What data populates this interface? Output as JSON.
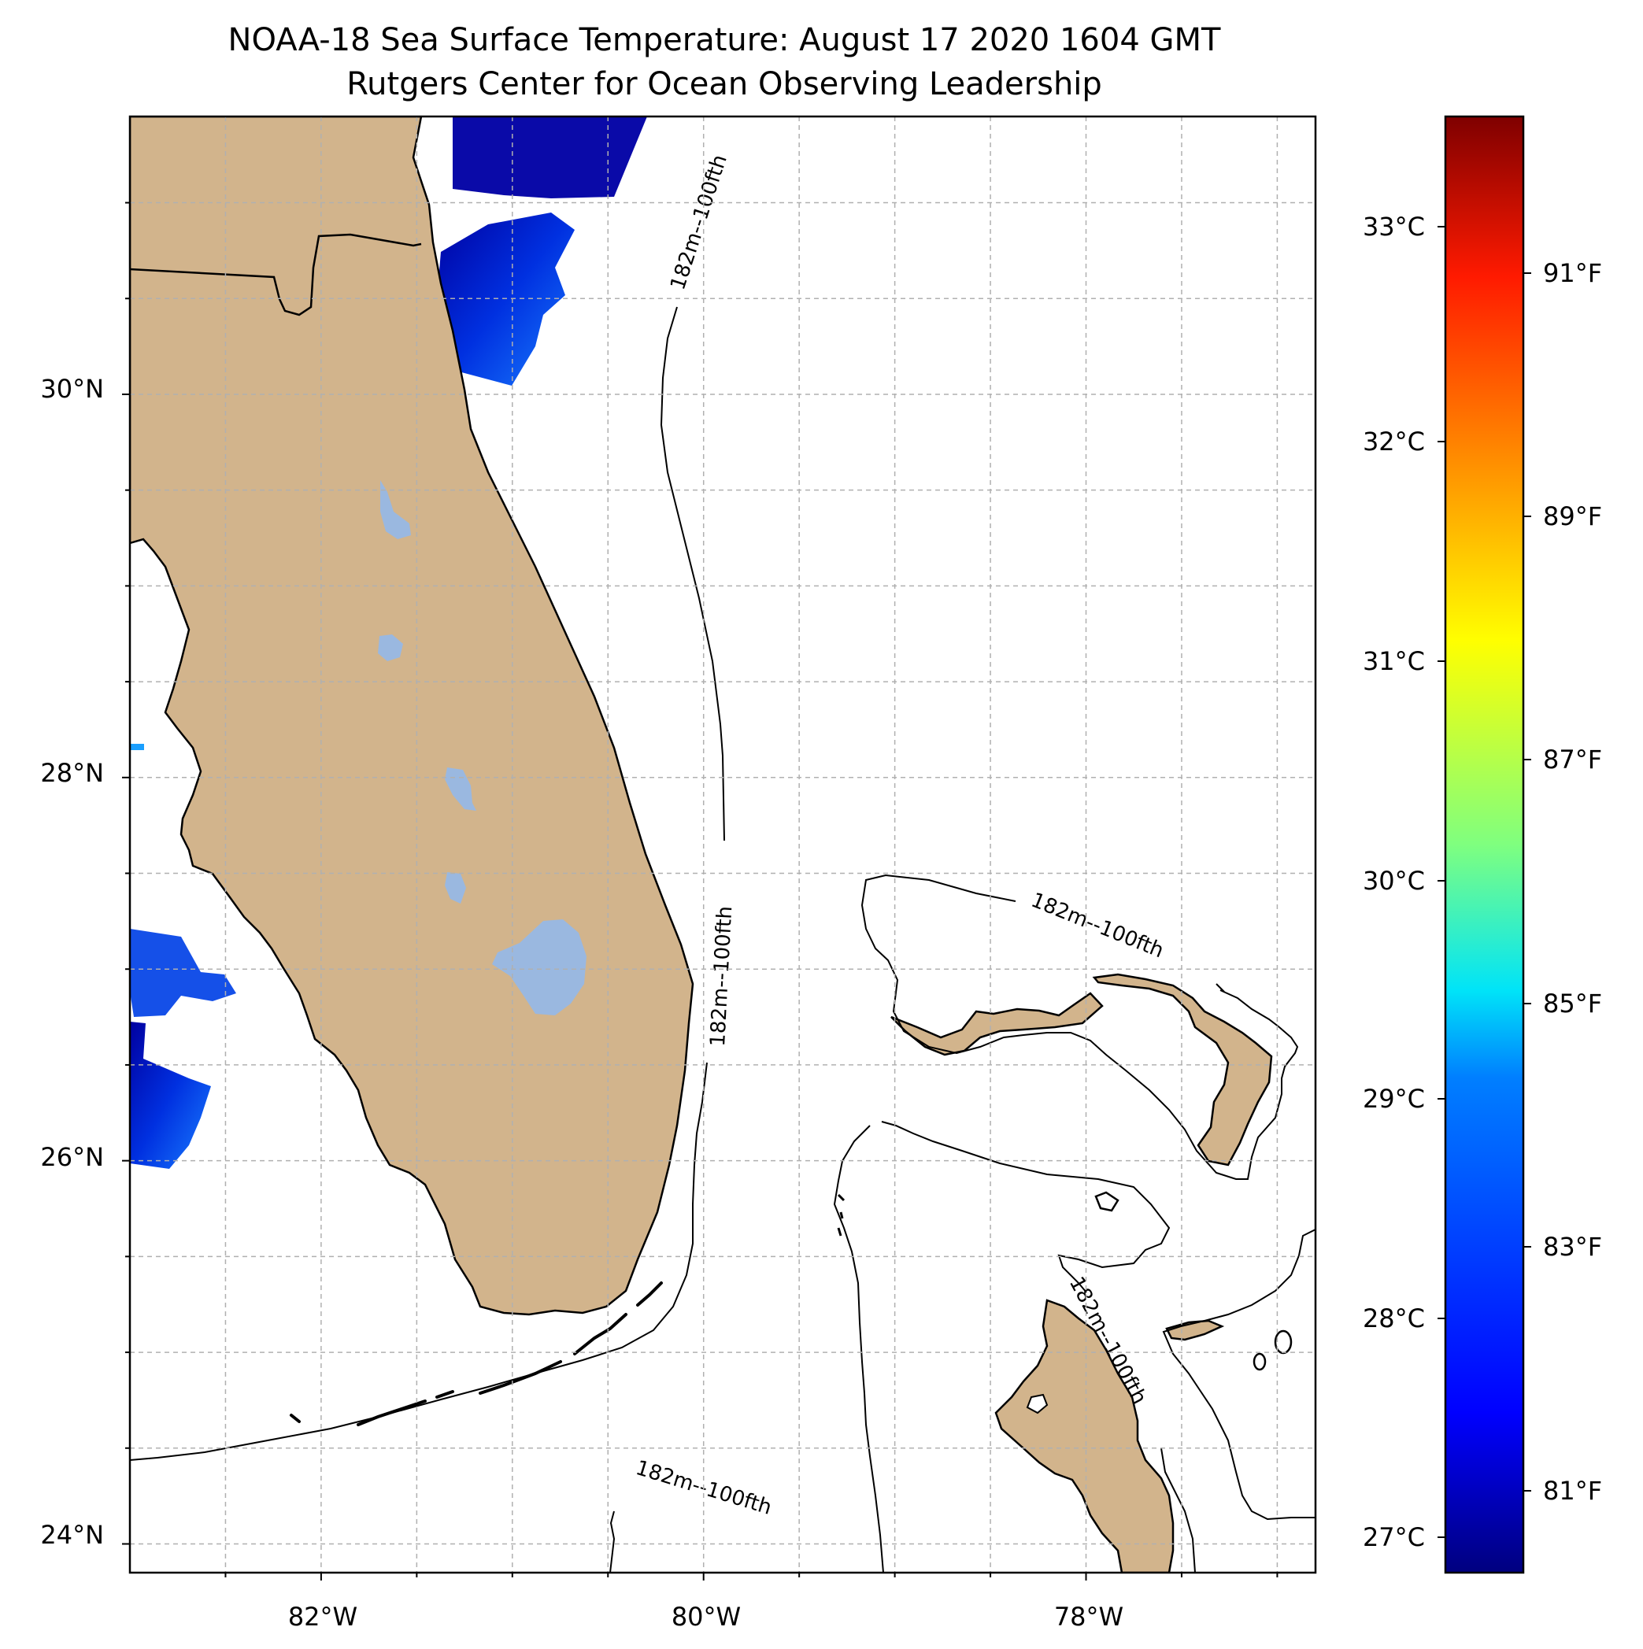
{
  "title": {
    "line1": "NOAA-18 Sea Surface Temperature: August 17 2020 1604 GMT",
    "line2": "Rutgers Center for Ocean Observing Leadership"
  },
  "map": {
    "land_color": "#d2b48c",
    "lake_color": "#9ab8e0",
    "lon_range": [
      -83.0,
      -76.8
    ],
    "lat_range": [
      23.85,
      31.45
    ],
    "lat_ticks": [
      {
        "value": 30,
        "label": "30°N"
      },
      {
        "value": 28,
        "label": "28°N"
      },
      {
        "value": 26,
        "label": "26°N"
      },
      {
        "value": 24,
        "label": "24°N"
      }
    ],
    "lon_ticks": [
      {
        "value": -82,
        "label": "82°W"
      },
      {
        "value": -80,
        "label": "80°W"
      },
      {
        "value": -78,
        "label": "78°W"
      }
    ],
    "isobath_label": "182m--100fth"
  },
  "colorbar": {
    "colors": [
      "#00007f",
      "#0000ff",
      "#007fff",
      "#00ffff",
      "#7fff7f",
      "#ffff00",
      "#ff7f00",
      "#ff0000",
      "#7f0000"
    ],
    "celsius_ticks": [
      "33°C",
      "32°C",
      "31°C",
      "30°C",
      "29°C",
      "28°C",
      "27°C"
    ],
    "fahrenheit_ticks": [
      "91°F",
      "89°F",
      "87°F",
      "85°F",
      "83°F",
      "81°F"
    ]
  }
}
